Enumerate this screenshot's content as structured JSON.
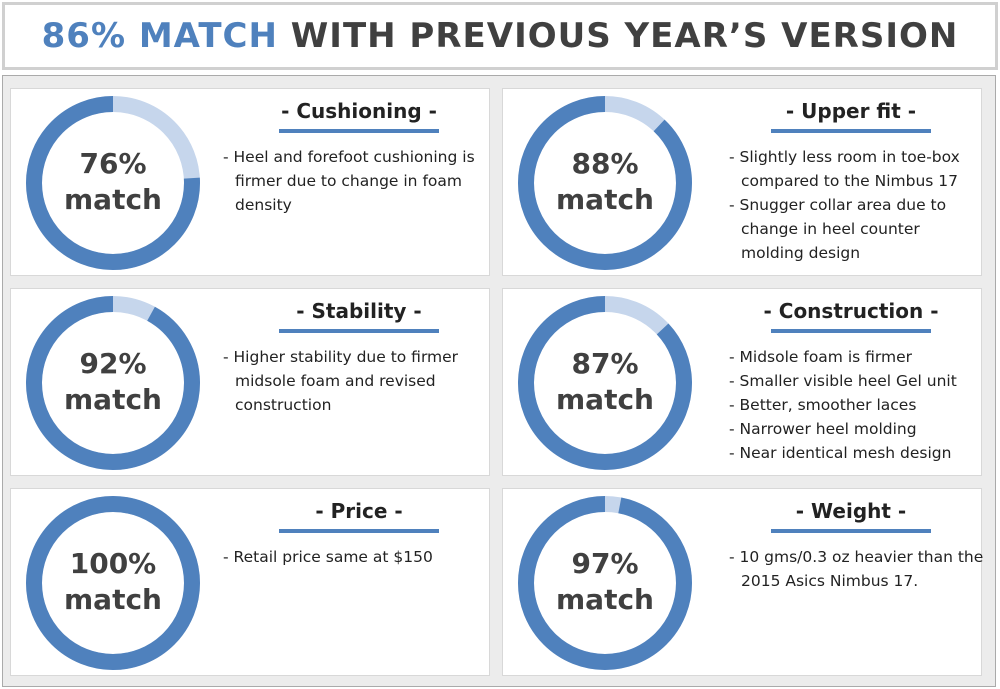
{
  "header": {
    "title_highlight": "86% MATCH",
    "title": "WITH PREVIOUS YEAR’S VERSION"
  },
  "chart_data": [
    {
      "type": "donut",
      "title": "- Cushioning -",
      "values": [
        76
      ],
      "value_labels": [
        "76%"
      ],
      "center_text": "match",
      "color": "#4f81bd",
      "track_color": "#c6d6ec",
      "notes": [
        "- Heel and forefoot cushioning is firmer due to change in foam density"
      ]
    },
    {
      "type": "donut",
      "title": "- Upper fit -",
      "values": [
        88
      ],
      "value_labels": [
        "88%"
      ],
      "center_text": "match",
      "color": "#4f81bd",
      "track_color": "#c6d6ec",
      "notes": [
        "- Slightly less room in toe-box compared to the Nimbus 17",
        "- Snugger collar area due to change in heel counter molding design"
      ]
    },
    {
      "type": "donut",
      "title": "- Stability -",
      "values": [
        92
      ],
      "value_labels": [
        "92%"
      ],
      "center_text": "match",
      "color": "#4f81bd",
      "track_color": "#c6d6ec",
      "notes": [
        "- Higher stability due to firmer midsole foam and revised construction"
      ]
    },
    {
      "type": "donut",
      "title": "- Construction -",
      "values": [
        87
      ],
      "value_labels": [
        "87%"
      ],
      "center_text": "match",
      "color": "#4f81bd",
      "track_color": "#c6d6ec",
      "notes": [
        "- Midsole foam is firmer",
        "- Smaller visible heel Gel unit",
        "- Better, smoother laces",
        "- Narrower heel molding",
        "- Near identical mesh design"
      ]
    },
    {
      "type": "donut",
      "title": "- Price -",
      "values": [
        100
      ],
      "value_labels": [
        "100%"
      ],
      "center_text": "match",
      "color": "#4f81bd",
      "track_color": "#c6d6ec",
      "notes": [
        "-  Retail price same at $150"
      ]
    },
    {
      "type": "donut",
      "title": "- Weight -",
      "values": [
        97
      ],
      "value_labels": [
        "97%"
      ],
      "center_text": "match",
      "color": "#4f81bd",
      "track_color": "#c6d6ec",
      "notes": [
        "- 10 gms/0.3 oz heavier than the 2015 Asics Nimbus 17."
      ]
    }
  ]
}
